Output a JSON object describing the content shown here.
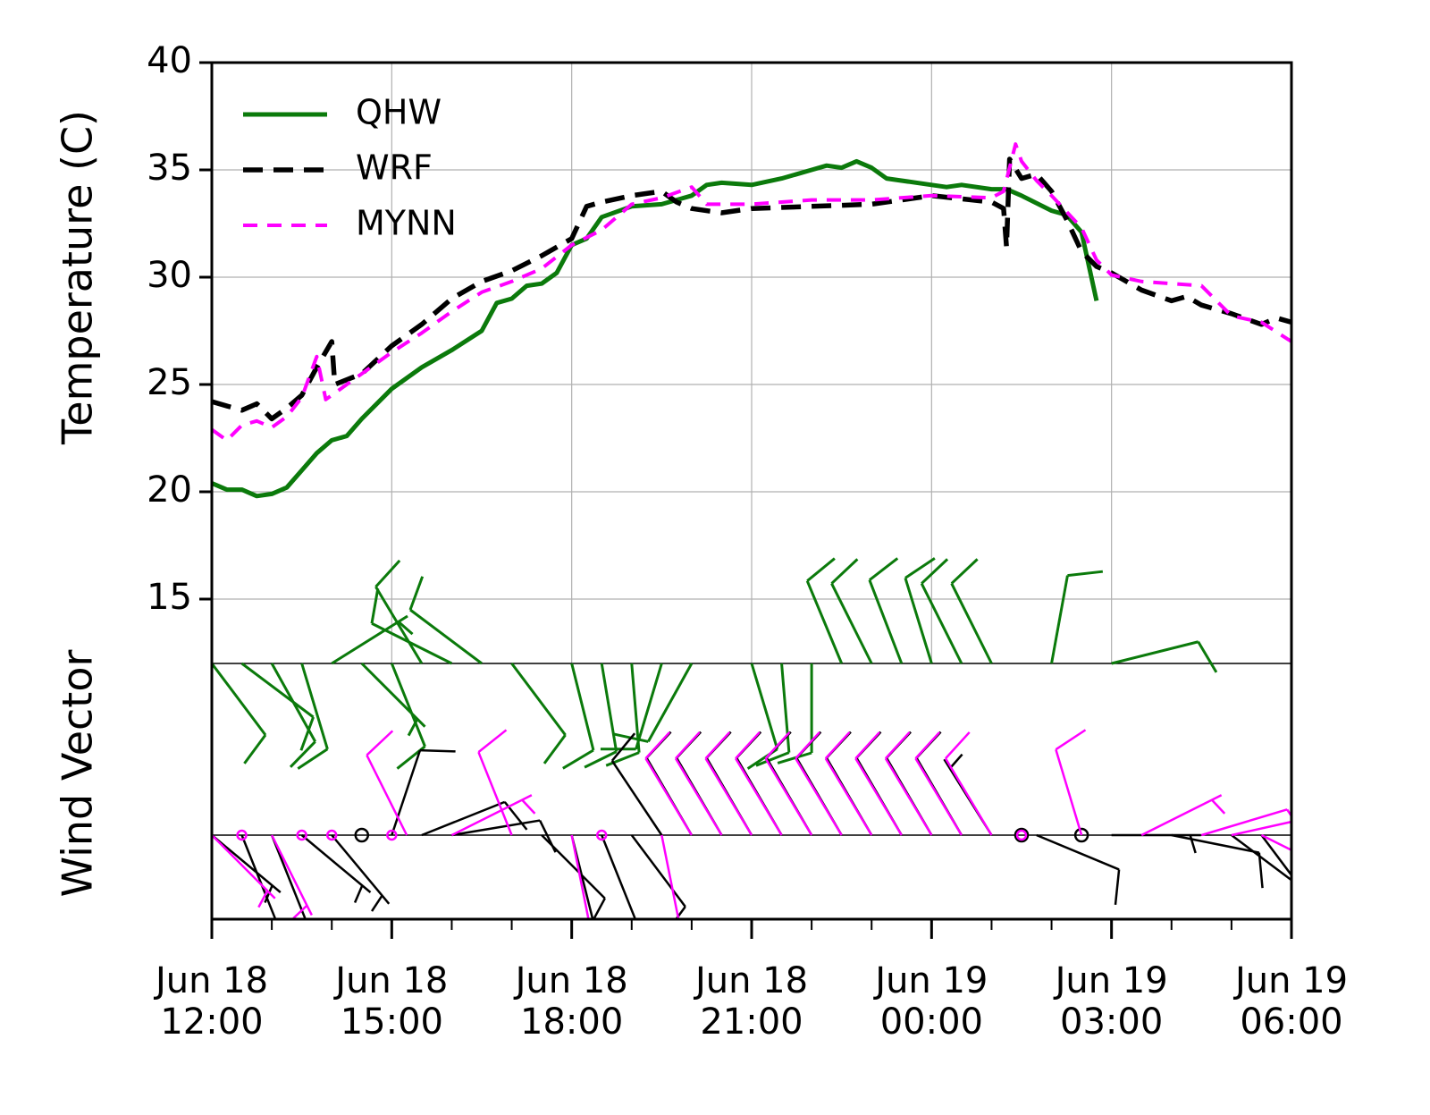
{
  "chart_data": {
    "type": "line",
    "ylabel": "Temperature (C)",
    "wind_label": "Wind Vector",
    "xlim": [
      "Jun 18 12:00",
      "Jun 19 06:00"
    ],
    "xticks": [
      {
        "value": "Jun 18 12:00",
        "label": "Jun 18\n12:00"
      },
      {
        "value": "Jun 18 15:00",
        "label": "Jun 18\n15:00"
      },
      {
        "value": "Jun 18 18:00",
        "label": "Jun 18\n18:00"
      },
      {
        "value": "Jun 18 21:00",
        "label": "Jun 18\n21:00"
      },
      {
        "value": "Jun 19 00:00",
        "label": "Jun 19\n00:00"
      },
      {
        "value": "Jun 19 03:00",
        "label": "Jun 19\n03:00"
      },
      {
        "value": "Jun 19 06:00",
        "label": "Jun 19\n06:00"
      }
    ],
    "xminorticks": [
      "Jun 18 13:00",
      "Jun 18 14:00",
      "Jun 18 16:00",
      "Jun 18 17:00",
      "Jun 18 19:00",
      "Jun 18 20:00",
      "Jun 18 22:00",
      "Jun 18 23:00",
      "Jun 19 01:00",
      "Jun 19 02:00",
      "Jun 19 04:00",
      "Jun 19 05:00"
    ],
    "ylim": [
      0,
      40
    ],
    "yticks": [
      15,
      20,
      25,
      30,
      35,
      40
    ],
    "grid": true,
    "legend": "upper left",
    "series": [
      {
        "name": "QHW",
        "color": "#0b7a0b",
        "style": "solid",
        "x": [
          "Jun 18 12:00",
          "Jun 18 12:15",
          "Jun 18 12:30",
          "Jun 18 12:45",
          "Jun 18 13:00",
          "Jun 18 13:15",
          "Jun 18 13:30",
          "Jun 18 13:45",
          "Jun 18 14:00",
          "Jun 18 14:15",
          "Jun 18 14:30",
          "Jun 18 15:00",
          "Jun 18 15:30",
          "Jun 18 16:00",
          "Jun 18 16:30",
          "Jun 18 16:45",
          "Jun 18 17:00",
          "Jun 18 17:15",
          "Jun 18 17:30",
          "Jun 18 17:45",
          "Jun 18 18:00",
          "Jun 18 18:15",
          "Jun 18 18:30",
          "Jun 18 19:00",
          "Jun 18 19:30",
          "Jun 18 20:00",
          "Jun 18 20:15",
          "Jun 18 20:30",
          "Jun 18 21:00",
          "Jun 18 21:30",
          "Jun 18 22:00",
          "Jun 18 22:15",
          "Jun 18 22:30",
          "Jun 18 22:45",
          "Jun 18 23:00",
          "Jun 18 23:15",
          "Jun 19 00:00",
          "Jun 19 00:15",
          "Jun 19 00:30",
          "Jun 19 01:00",
          "Jun 19 01:15",
          "Jun 19 01:30",
          "Jun 19 02:00",
          "Jun 19 02:15",
          "Jun 19 02:30",
          "Jun 19 02:45"
        ],
        "values": [
          20.4,
          20.1,
          20.1,
          19.8,
          19.9,
          20.2,
          21.0,
          21.8,
          22.4,
          22.6,
          23.4,
          24.8,
          25.8,
          26.6,
          27.5,
          28.8,
          29.0,
          29.6,
          29.7,
          30.2,
          31.5,
          31.8,
          32.8,
          33.3,
          33.4,
          33.8,
          34.3,
          34.4,
          34.3,
          34.6,
          35.0,
          35.2,
          35.1,
          35.4,
          35.1,
          34.6,
          34.3,
          34.2,
          34.3,
          34.1,
          34.1,
          33.8,
          33.1,
          32.9,
          32.1,
          28.9
        ]
      },
      {
        "name": "WRF",
        "color": "#000000",
        "style": "longdash",
        "x": [
          "Jun 18 12:00",
          "Jun 18 12:30",
          "Jun 18 12:45",
          "Jun 18 13:00",
          "Jun 18 13:15",
          "Jun 18 13:30",
          "Jun 18 13:45",
          "Jun 18 14:00",
          "Jun 18 14:03",
          "Jun 18 14:30",
          "Jun 18 15:00",
          "Jun 18 15:30",
          "Jun 18 16:00",
          "Jun 18 16:30",
          "Jun 18 17:00",
          "Jun 18 17:30",
          "Jun 18 18:00",
          "Jun 18 18:15",
          "Jun 18 18:30",
          "Jun 18 19:00",
          "Jun 18 19:30",
          "Jun 18 19:45",
          "Jun 18 20:00",
          "Jun 18 20:30",
          "Jun 18 21:00",
          "Jun 18 22:00",
          "Jun 18 23:00",
          "Jun 19 00:00",
          "Jun 19 01:00",
          "Jun 19 01:12",
          "Jun 19 01:15",
          "Jun 19 01:18",
          "Jun 19 01:30",
          "Jun 19 01:45",
          "Jun 19 02:00",
          "Jun 19 02:15",
          "Jun 19 02:30",
          "Jun 19 02:45",
          "Jun 19 03:00",
          "Jun 19 03:30",
          "Jun 19 04:00",
          "Jun 19 04:15",
          "Jun 19 04:30",
          "Jun 19 05:00",
          "Jun 19 05:30",
          "Jun 19 05:45",
          "Jun 19 06:00"
        ],
        "values": [
          24.2,
          23.8,
          24.1,
          23.4,
          23.9,
          24.5,
          25.8,
          27.0,
          25.0,
          25.5,
          26.8,
          27.8,
          29.0,
          29.8,
          30.3,
          31.0,
          31.8,
          33.3,
          33.5,
          33.8,
          34.0,
          33.5,
          33.2,
          33.0,
          33.2,
          33.3,
          33.4,
          33.8,
          33.5,
          33.2,
          31.4,
          35.5,
          34.6,
          34.8,
          34.0,
          32.7,
          31.2,
          30.5,
          30.2,
          29.4,
          28.9,
          29.1,
          28.7,
          28.3,
          27.8,
          28.1,
          27.9
        ]
      },
      {
        "name": "MYNN",
        "color": "#ff00ff",
        "style": "dash",
        "x": [
          "Jun 18 12:00",
          "Jun 18 12:15",
          "Jun 18 12:30",
          "Jun 18 12:45",
          "Jun 18 13:00",
          "Jun 18 13:15",
          "Jun 18 13:30",
          "Jun 18 13:45",
          "Jun 18 13:54",
          "Jun 18 14:30",
          "Jun 18 15:00",
          "Jun 18 15:30",
          "Jun 18 16:00",
          "Jun 18 16:30",
          "Jun 18 17:00",
          "Jun 18 17:30",
          "Jun 18 18:00",
          "Jun 18 18:30",
          "Jun 18 19:00",
          "Jun 18 19:30",
          "Jun 18 20:00",
          "Jun 18 20:15",
          "Jun 18 21:00",
          "Jun 18 22:00",
          "Jun 18 23:00",
          "Jun 19 00:00",
          "Jun 19 01:00",
          "Jun 19 01:12",
          "Jun 19 01:18",
          "Jun 19 01:24",
          "Jun 19 01:30",
          "Jun 19 01:45",
          "Jun 19 02:00",
          "Jun 19 02:30",
          "Jun 19 02:45",
          "Jun 19 03:00",
          "Jun 19 03:30",
          "Jun 19 04:00",
          "Jun 19 04:30",
          "Jun 19 05:00",
          "Jun 19 05:30",
          "Jun 19 06:00"
        ],
        "values": [
          22.9,
          22.4,
          23.1,
          23.3,
          23.0,
          23.5,
          24.4,
          26.3,
          24.3,
          25.5,
          26.5,
          27.4,
          28.4,
          29.3,
          29.8,
          30.4,
          31.5,
          32.2,
          33.4,
          33.7,
          34.2,
          33.4,
          33.4,
          33.6,
          33.6,
          33.8,
          33.7,
          34.0,
          35.1,
          36.2,
          35.4,
          34.5,
          33.8,
          32.3,
          30.8,
          30.1,
          29.8,
          29.7,
          29.6,
          28.2,
          27.9,
          27.0
        ]
      }
    ],
    "wind": [
      {
        "name": "QHW",
        "color": "#0b7a0b",
        "x": [
          "Jun 18 12:00",
          "Jun 18 12:30",
          "Jun 18 13:00",
          "Jun 18 13:30",
          "Jun 18 14:00",
          "Jun 18 14:30",
          "Jun 18 15:00",
          "Jun 18 15:30",
          "Jun 18 16:00",
          "Jun 18 16:30",
          "Jun 18 17:00",
          "Jun 18 18:00",
          "Jun 18 18:30",
          "Jun 18 19:00",
          "Jun 18 19:30",
          "Jun 18 20:00",
          "Jun 18 21:00",
          "Jun 18 21:30",
          "Jun 18 22:00",
          "Jun 18 22:30",
          "Jun 18 23:00",
          "Jun 18 23:30",
          "Jun 19 00:00",
          "Jun 19 00:30",
          "Jun 19 01:00",
          "Jun 19 02:00",
          "Jun 19 03:00"
        ],
        "u": [
          -6,
          -8,
          -5,
          -3,
          -8,
          -6,
          -4,
          6,
          10,
          8,
          -6,
          -3,
          -2,
          -1,
          3,
          5,
          -3,
          -1,
          0,
          5,
          6,
          5,
          4,
          6,
          6,
          -2,
          -12
        ],
        "v": [
          8,
          6,
          9,
          10,
          -5,
          6,
          10,
          -10,
          -5,
          -6,
          8,
          12,
          12,
          12,
          10,
          9,
          10,
          12,
          12,
          -12,
          -12,
          -13,
          -13,
          -12,
          -12,
          -11,
          -3
        ]
      },
      {
        "name": "WRF",
        "color": "#000000",
        "x": [
          "Jun 18 12:00",
          "Jun 18 12:30",
          "Jun 18 13:00",
          "Jun 18 13:30",
          "Jun 18 14:00",
          "Jun 18 14:30",
          "Jun 18 15:00",
          "Jun 18 15:30",
          "Jun 18 16:00",
          "Jun 18 17:30",
          "Jun 18 18:00",
          "Jun 18 18:30",
          "Jun 18 19:00",
          "Jun 18 19:30",
          "Jun 18 20:00",
          "Jun 18 20:30",
          "Jun 18 21:00",
          "Jun 18 21:30",
          "Jun 18 22:00",
          "Jun 18 22:30",
          "Jun 18 23:00",
          "Jun 18 23:30",
          "Jun 19 00:00",
          "Jun 19 00:30",
          "Jun 19 01:00",
          "Jun 19 01:30",
          "Jun 19 01:45",
          "Jun 19 02:30",
          "Jun 19 03:00",
          "Jun 19 04:00",
          "Jun 19 05:00",
          "Jun 19 05:30",
          "Jun 19 06:00"
        ],
        "u": [
          -6,
          -4,
          -4,
          -6,
          -5,
          0,
          -4,
          -10,
          -12,
          -8,
          -3,
          -4,
          -6,
          8,
          7,
          7,
          7,
          7,
          7,
          7,
          7,
          7,
          7,
          7,
          5,
          0,
          -12,
          0,
          -8,
          -10,
          -8,
          -6,
          -10
        ],
        "v": [
          5,
          10,
          10,
          5,
          6,
          0,
          -12,
          -4,
          -2,
          8,
          12,
          10,
          8,
          -12,
          -12,
          -12,
          -12,
          -12,
          -12,
          -12,
          -12,
          -12,
          -12,
          -12,
          -8,
          0,
          5,
          0,
          0,
          2,
          6,
          8,
          0
        ]
      },
      {
        "name": "MYNN",
        "color": "#ff00ff",
        "x": [
          "Jun 18 12:00",
          "Jun 18 12:30",
          "Jun 18 13:00",
          "Jun 18 13:30",
          "Jun 18 14:00",
          "Jun 18 15:00",
          "Jun 18 15:15",
          "Jun 18 16:00",
          "Jun 18 17:00",
          "Jun 18 18:00",
          "Jun 18 18:30",
          "Jun 18 19:30",
          "Jun 18 20:00",
          "Jun 18 20:30",
          "Jun 18 21:00",
          "Jun 18 21:30",
          "Jun 18 22:00",
          "Jun 18 22:30",
          "Jun 18 23:00",
          "Jun 18 23:30",
          "Jun 19 00:00",
          "Jun 19 00:30",
          "Jun 19 01:00",
          "Jun 19 01:30",
          "Jun 19 02:30",
          "Jun 19 03:30",
          "Jun 19 04:30",
          "Jun 19 05:00",
          "Jun 19 05:30",
          "Jun 19 06:00"
        ],
        "u": [
          -5,
          0,
          -4,
          0,
          0,
          0,
          5,
          -8,
          4,
          -2,
          0,
          -2,
          6,
          6,
          6,
          6,
          6,
          6,
          6,
          6,
          6,
          6,
          6,
          0,
          3,
          -8,
          -10,
          -9,
          -8,
          -6
        ],
        "v": [
          5,
          0,
          8,
          0,
          0,
          0,
          -10,
          -4,
          -10,
          10,
          0,
          10,
          -10,
          -10,
          -10,
          -10,
          -10,
          -10,
          -10,
          -10,
          -10,
          -10,
          -10,
          0,
          -10,
          -4,
          -3,
          -2,
          4,
          6
        ]
      }
    ]
  }
}
